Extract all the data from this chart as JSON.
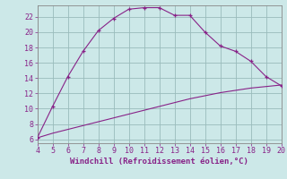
{
  "xlabel": "Windchill (Refroidissement éolien,°C)",
  "background_color": "#cce8e8",
  "line_color": "#882288",
  "xlim": [
    4,
    20
  ],
  "ylim": [
    5.5,
    23.5
  ],
  "x_curve": [
    4,
    5,
    6,
    7,
    8,
    9,
    10,
    11,
    12,
    13,
    14,
    15,
    16,
    17,
    18,
    19,
    20
  ],
  "y_curve": [
    6.2,
    10.3,
    14.2,
    17.5,
    20.2,
    21.8,
    23.0,
    23.2,
    23.2,
    22.2,
    22.2,
    20.0,
    18.2,
    17.5,
    16.2,
    14.2,
    13.0
  ],
  "x_diag": [
    4,
    5,
    6,
    7,
    8,
    9,
    10,
    11,
    12,
    13,
    14,
    15,
    16,
    17,
    18,
    19,
    20
  ],
  "y_diag": [
    6.2,
    6.8,
    7.3,
    7.8,
    8.3,
    8.8,
    9.3,
    9.8,
    10.3,
    10.8,
    11.3,
    11.7,
    12.1,
    12.4,
    12.7,
    12.9,
    13.1
  ],
  "yticks": [
    6,
    8,
    10,
    12,
    14,
    16,
    18,
    20,
    22
  ],
  "xticks": [
    4,
    5,
    6,
    7,
    8,
    9,
    10,
    11,
    12,
    13,
    14,
    15,
    16,
    17,
    18,
    19,
    20
  ],
  "grid_color": "#99bbbb",
  "tick_color": "#882288",
  "label_color": "#882288",
  "font": "monospace",
  "fontsize_label": 6.5,
  "fontsize_tick": 6
}
